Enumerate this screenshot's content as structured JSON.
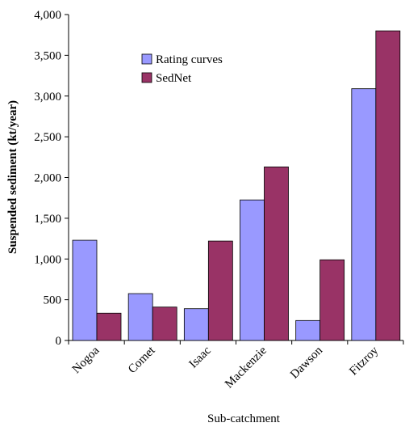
{
  "chart_data": {
    "type": "bar",
    "categories": [
      "Nogoa",
      "Comet",
      "Isaac",
      "Mackenzie",
      "Dawson",
      "Fitzroy"
    ],
    "series": [
      {
        "name": "Rating curves",
        "color": "#9999ff",
        "values": [
          1230,
          575,
          390,
          1725,
          245,
          3090
        ]
      },
      {
        "name": "SedNet",
        "color": "#993366",
        "values": [
          335,
          410,
          1220,
          2130,
          990,
          3800
        ]
      }
    ],
    "xlabel": "Sub-catchment",
    "ylabel": "Suspended sediment (kt/year)",
    "ylim": [
      0,
      4000
    ],
    "yticks": [
      0,
      500,
      1000,
      1500,
      2000,
      2500,
      3000,
      3500,
      4000
    ],
    "ytick_labels": [
      "0",
      "500",
      "1,000",
      "1,500",
      "2,000",
      "2,500",
      "3,000",
      "3,500",
      "4,000"
    ],
    "grid": false,
    "legend": "top-center"
  }
}
